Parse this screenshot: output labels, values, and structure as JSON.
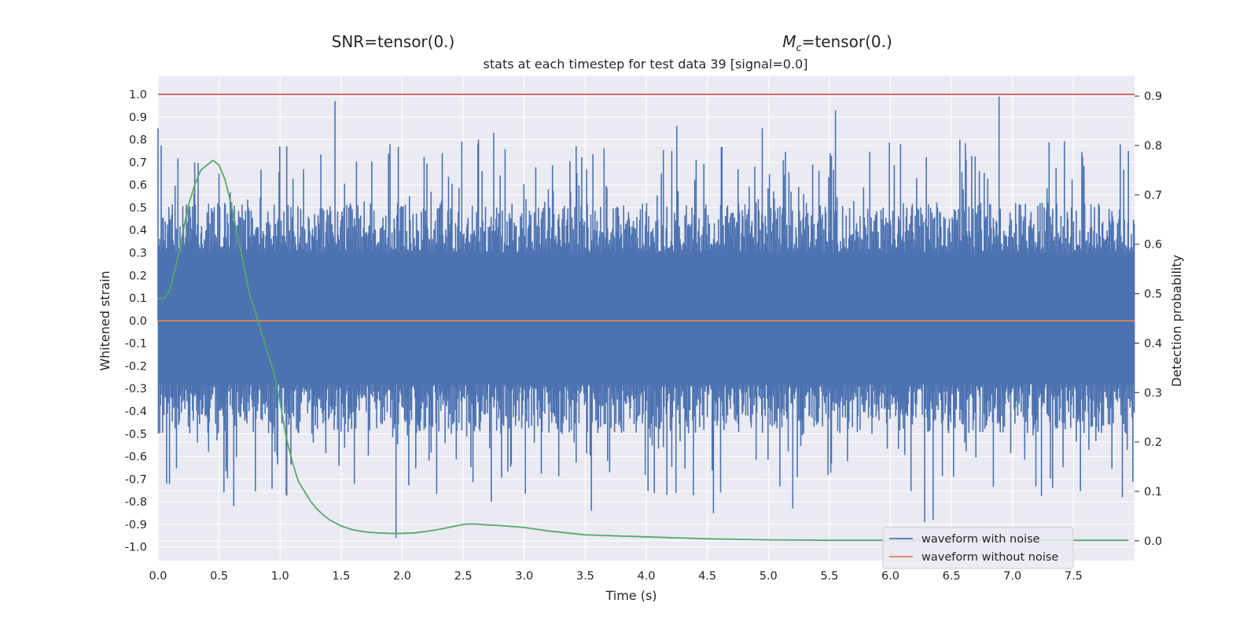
{
  "chart_data": {
    "type": "line",
    "header": {
      "snr_label": "SNR=tensor(0.)",
      "mc_symbol": "M",
      "mc_subscript": "c",
      "mc_value": "=tensor(0.)"
    },
    "title": "stats at each timestep for test data 39 [signal=0.0]",
    "xlabel": "Time (s)",
    "ylabel": "Whitened strain",
    "y2label": "Detection probability",
    "xlim": [
      0.0,
      8.0
    ],
    "ylim": [
      -1.06,
      1.08
    ],
    "y2lim": [
      -0.04,
      0.94
    ],
    "x_ticks": [
      "0.0",
      "0.5",
      "1.0",
      "1.5",
      "2.0",
      "2.5",
      "3.0",
      "3.5",
      "4.0",
      "4.5",
      "5.0",
      "5.5",
      "6.0",
      "6.5",
      "7.0",
      "7.5"
    ],
    "y_ticks": [
      "1.0",
      "0.9",
      "0.8",
      "0.7",
      "0.6",
      "0.5",
      "0.4",
      "0.3",
      "0.2",
      "0.1",
      "0.0",
      "-0.1",
      "-0.2",
      "-0.3",
      "-0.4",
      "-0.5",
      "-0.6",
      "-0.7",
      "-0.8",
      "-0.9",
      "-1.0"
    ],
    "y2_ticks": [
      "0.9",
      "0.8",
      "0.7",
      "0.6",
      "0.5",
      "0.4",
      "0.3",
      "0.2",
      "0.1",
      "0.0"
    ],
    "grid": true,
    "legend_position": "lower-right",
    "colors": {
      "noisy": "#4c72b0",
      "clean": "#dd8452",
      "probability": "#55a868",
      "threshold": "#c44e52",
      "background": "#eaeaf2",
      "grid": "#ffffff"
    },
    "series": [
      {
        "name": "waveform with noise",
        "note_kind": "noise_band",
        "envelope_upper": [
          [
            0.0,
            0.85
          ],
          [
            0.3,
            0.7
          ],
          [
            0.5,
            0.65
          ],
          [
            0.8,
            0.4
          ],
          [
            1.45,
            0.97
          ],
          [
            1.9,
            0.78
          ],
          [
            2.75,
            0.83
          ],
          [
            4.25,
            0.86
          ],
          [
            4.95,
            0.85
          ],
          [
            5.55,
            0.93
          ],
          [
            6.89,
            0.99
          ],
          [
            7.95,
            0.75
          ]
        ],
        "envelope_lower": [
          [
            0.07,
            -0.72
          ],
          [
            0.62,
            -0.82
          ],
          [
            1.05,
            -0.77
          ],
          [
            1.95,
            -0.96
          ],
          [
            2.73,
            -0.8
          ],
          [
            3.55,
            -0.84
          ],
          [
            4.55,
            -0.85
          ],
          [
            5.2,
            -0.83
          ],
          [
            6.28,
            -0.89
          ],
          [
            6.35,
            -0.88
          ],
          [
            7.9,
            -0.78
          ]
        ]
      },
      {
        "name": "waveform without noise",
        "x": [
          0.0,
          8.0
        ],
        "y": [
          0.0,
          0.0
        ]
      },
      {
        "name": "",
        "axis": "right",
        "x": [
          0.0,
          0.05,
          0.1,
          0.15,
          0.2,
          0.25,
          0.3,
          0.35,
          0.4,
          0.45,
          0.5,
          0.55,
          0.6,
          0.65,
          0.7,
          0.75,
          0.8,
          0.85,
          0.9,
          0.95,
          1.0,
          1.05,
          1.1,
          1.15,
          1.2,
          1.25,
          1.3,
          1.35,
          1.4,
          1.5,
          1.6,
          1.7,
          1.8,
          1.9,
          2.0,
          2.1,
          2.2,
          2.3,
          2.4,
          2.5,
          2.55,
          2.6,
          2.7,
          2.8,
          2.9,
          3.0,
          3.2,
          3.5,
          4.0,
          4.5,
          5.0,
          5.5,
          6.0,
          6.5,
          7.0,
          7.5,
          7.95
        ],
        "y": [
          0.49,
          0.49,
          0.51,
          0.56,
          0.62,
          0.68,
          0.72,
          0.75,
          0.76,
          0.77,
          0.76,
          0.73,
          0.68,
          0.62,
          0.56,
          0.5,
          0.46,
          0.42,
          0.38,
          0.34,
          0.28,
          0.21,
          0.16,
          0.12,
          0.1,
          0.08,
          0.065,
          0.053,
          0.043,
          0.03,
          0.022,
          0.018,
          0.016,
          0.015,
          0.015,
          0.016,
          0.019,
          0.023,
          0.028,
          0.033,
          0.034,
          0.034,
          0.032,
          0.031,
          0.029,
          0.027,
          0.02,
          0.012,
          0.008,
          0.004,
          0.002,
          0.001,
          0.001,
          0.001,
          0.001,
          0.001,
          0.001
        ]
      },
      {
        "name": "",
        "axis": "left",
        "x": [
          0.0,
          8.0
        ],
        "y": [
          1.0,
          1.0
        ]
      }
    ]
  }
}
